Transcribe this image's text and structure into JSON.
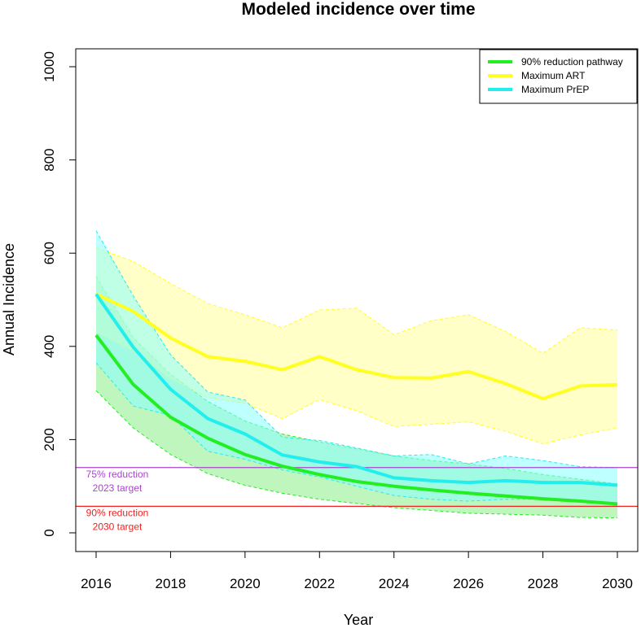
{
  "chart_data": {
    "type": "line",
    "title": "Modeled incidence over time",
    "xlabel": "Year",
    "ylabel": "Annual Incidence",
    "xlim": [
      2016,
      2030
    ],
    "ylim": [
      0,
      1000
    ],
    "x_ticks": [
      2016,
      2018,
      2020,
      2022,
      2024,
      2026,
      2028,
      2030
    ],
    "y_ticks": [
      0,
      200,
      400,
      600,
      800,
      1000
    ],
    "x": [
      2016,
      2017,
      2018,
      2019,
      2020,
      2021,
      2022,
      2023,
      2024,
      2025,
      2026,
      2027,
      2028,
      2029,
      2030
    ],
    "legend_position": "top-right",
    "series": [
      {
        "name": "90% reduction pathway",
        "color": "#22ee22",
        "band_color": "#88ee88",
        "values": [
          424,
          318,
          248,
          203,
          168,
          143,
          125,
          110,
          100,
          92,
          85,
          79,
          73,
          68,
          62
        ],
        "lower": [
          305,
          225,
          168,
          127,
          102,
          85,
          72,
          63,
          54,
          48,
          42,
          40,
          38,
          33,
          32
        ],
        "upper": [
          550,
          418,
          340,
          282,
          240,
          212,
          195,
          180,
          165,
          155,
          148,
          138,
          125,
          115,
          105
        ]
      },
      {
        "name": "Maximum ART",
        "color": "#ffff22",
        "band_color": "#ffff99",
        "values": [
          512,
          475,
          418,
          378,
          368,
          350,
          378,
          350,
          333,
          332,
          346,
          320,
          288,
          315,
          318
        ],
        "lower": [
          430,
          390,
          330,
          290,
          278,
          245,
          286,
          262,
          228,
          233,
          238,
          218,
          191,
          210,
          225
        ],
        "upper": [
          612,
          582,
          535,
          492,
          468,
          440,
          478,
          482,
          425,
          455,
          468,
          432,
          385,
          440,
          435
        ]
      },
      {
        "name": "Maximum PrEP",
        "color": "#22eeee",
        "band_color": "#88ffff",
        "values": [
          512,
          398,
          308,
          245,
          212,
          167,
          152,
          142,
          118,
          112,
          108,
          112,
          108,
          108,
          102
        ],
        "lower": [
          365,
          272,
          252,
          175,
          158,
          135,
          120,
          100,
          80,
          72,
          68,
          72,
          72,
          68,
          62
        ],
        "upper": [
          648,
          508,
          382,
          302,
          285,
          205,
          198,
          182,
          165,
          168,
          148,
          165,
          155,
          142,
          140
        ]
      }
    ],
    "reference_lines": [
      {
        "y": 140,
        "color": "#aa44cc",
        "label_line1": "75% reduction",
        "label_line2": "2023 target"
      },
      {
        "y": 57,
        "color": "#ee2222",
        "label_line1": "90% reduction",
        "label_line2": "2030 target"
      }
    ]
  }
}
